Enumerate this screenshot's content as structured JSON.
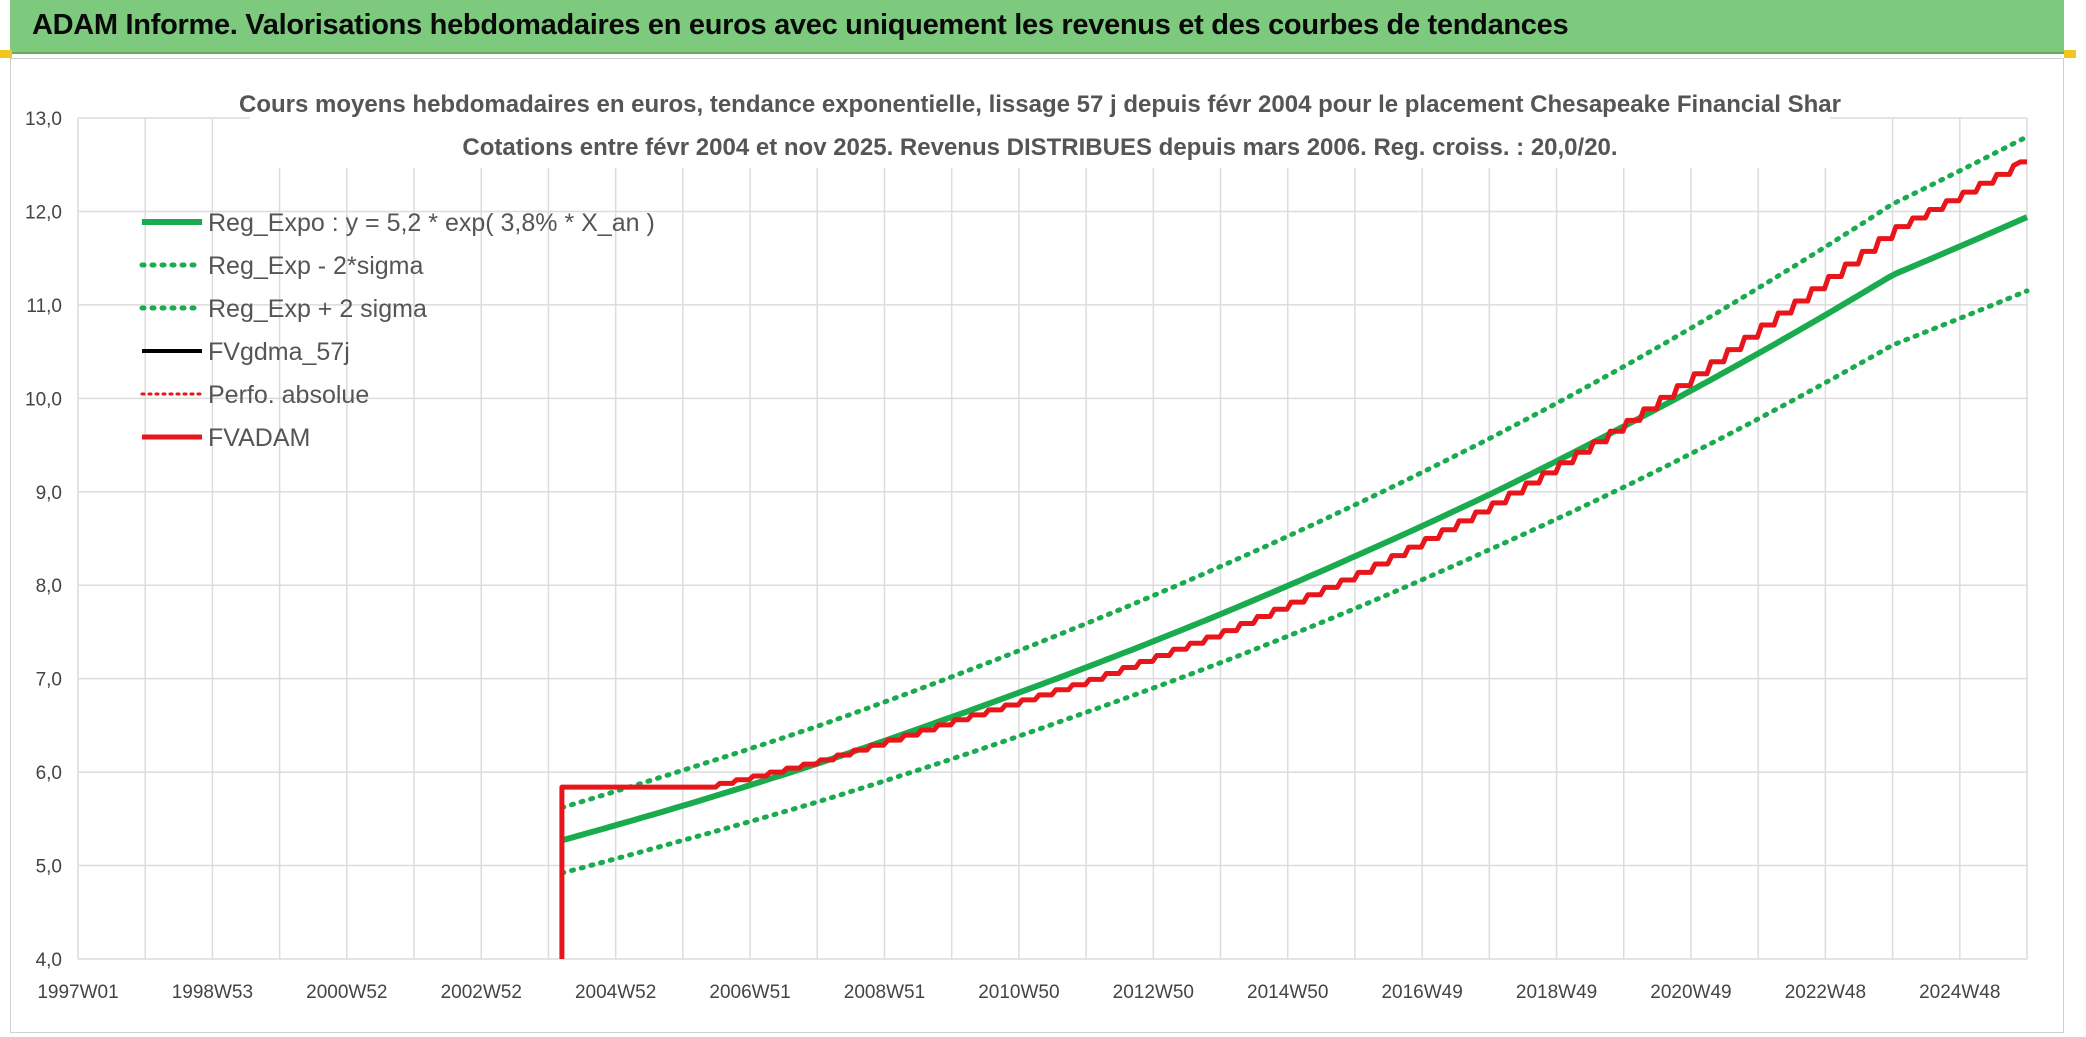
{
  "banner": {
    "title": "ADAM Informe. Valorisations hebdomadaires en euros avec uniquement les revenus et des courbes de tendances"
  },
  "colors": {
    "banner": "#7dc97e",
    "green": "#1aab4f",
    "red": "#e8161b",
    "black": "#000000",
    "grid": "#dcdcdc"
  },
  "chart_data": {
    "type": "line",
    "title_line1": "Cours moyens hebdomadaires en euros, tendance exponentielle, lissage 57 j depuis févr 2004 pour le placement Chesapeake Financial Shar",
    "title_line2": "Cotations entre févr 2004 et nov 2025. Revenus DISTRIBUES depuis mars 2006. Reg. croiss. : 20,0/20.",
    "xlabel": "",
    "ylabel": "",
    "ylim": [
      4.0,
      13.0
    ],
    "xlim": [
      1997.0,
      2026.0
    ],
    "grid": true,
    "legend_position": "top-left",
    "y_ticks": [
      "4,0",
      "5,0",
      "6,0",
      "7,0",
      "8,0",
      "9,0",
      "10,0",
      "11,0",
      "12,0",
      "13,0"
    ],
    "x_ticks": [
      {
        "label": "1997W01",
        "x": 1997.0
      },
      {
        "label": "1998W53",
        "x": 1999.0
      },
      {
        "label": "2000W52",
        "x": 2001.0
      },
      {
        "label": "2002W52",
        "x": 2003.0
      },
      {
        "label": "2004W52",
        "x": 2005.0
      },
      {
        "label": "2006W51",
        "x": 2007.0
      },
      {
        "label": "2008W51",
        "x": 2009.0
      },
      {
        "label": "2010W50",
        "x": 2011.0
      },
      {
        "label": "2012W50",
        "x": 2013.0
      },
      {
        "label": "2014W50",
        "x": 2015.0
      },
      {
        "label": "2016W49",
        "x": 2017.0
      },
      {
        "label": "2018W49",
        "x": 2019.0
      },
      {
        "label": "2020W49",
        "x": 2021.0
      },
      {
        "label": "2022W48",
        "x": 2023.0
      },
      {
        "label": "2024W48",
        "x": 2025.0
      }
    ],
    "series": [
      {
        "name": "Reg_Expo : y = 5,2 * exp( 3,8% *  X_an )",
        "style": "solid",
        "color": "#1aab4f",
        "x": [
          2004.2,
          2006.0,
          2008.0,
          2010.0,
          2012.0,
          2014.0,
          2016.0,
          2018.0,
          2020.0,
          2022.0,
          2024.0,
          2026.0
        ],
        "y": [
          5.27,
          5.64,
          6.09,
          6.59,
          7.12,
          7.69,
          8.31,
          8.97,
          9.7,
          10.48,
          11.32,
          11.94
        ]
      },
      {
        "name": "Reg_Exp - 2*sigma",
        "style": "dotted",
        "color": "#1aab4f",
        "x": [
          2004.2,
          2006.0,
          2008.0,
          2010.0,
          2012.0,
          2014.0,
          2016.0,
          2018.0,
          2020.0,
          2022.0,
          2024.0,
          2026.0
        ],
        "y": [
          4.92,
          5.27,
          5.68,
          6.14,
          6.64,
          7.17,
          7.75,
          8.38,
          9.05,
          9.78,
          10.57,
          11.15
        ]
      },
      {
        "name": "Reg_Exp + 2 sigma",
        "style": "dotted",
        "color": "#1aab4f",
        "x": [
          2004.2,
          2006.0,
          2008.0,
          2010.0,
          2012.0,
          2014.0,
          2016.0,
          2018.0,
          2020.0,
          2022.0,
          2024.0,
          2026.0
        ],
        "y": [
          5.62,
          6.02,
          6.49,
          7.02,
          7.59,
          8.2,
          8.86,
          9.57,
          10.34,
          11.18,
          12.08,
          12.8
        ]
      },
      {
        "name": "FVgdma_57j",
        "style": "solid",
        "color": "#000000",
        "x": [
          2004.2,
          2006.3,
          2007.0,
          2008.0,
          2010.0,
          2012.0,
          2014.0,
          2016.0,
          2018.0,
          2020.0,
          2022.0,
          2024.0,
          2025.9
        ],
        "y": [
          5.84,
          5.84,
          5.95,
          6.12,
          6.55,
          6.98,
          7.5,
          8.12,
          8.86,
          9.74,
          10.76,
          11.82,
          12.53
        ]
      },
      {
        "name": "Perfo. absolue",
        "style": "dotted",
        "color": "#e8161b",
        "x": [
          2004.2,
          2006.3,
          2007.0,
          2008.0,
          2010.0,
          2012.0,
          2014.0,
          2016.0,
          2018.0,
          2020.0,
          2022.0,
          2024.0,
          2025.9
        ],
        "y": [
          5.84,
          5.84,
          5.95,
          6.12,
          6.55,
          6.98,
          7.5,
          8.12,
          8.86,
          9.74,
          10.76,
          11.82,
          12.53
        ]
      },
      {
        "name": "FVADAM",
        "style": "solid",
        "color": "#e8161b",
        "x": [
          2004.2,
          2004.2,
          2006.3,
          2007.0,
          2008.0,
          2010.0,
          2012.0,
          2014.0,
          2016.0,
          2018.0,
          2020.0,
          2022.0,
          2024.0,
          2025.9,
          2026.0
        ],
        "y": [
          4.0,
          5.84,
          5.84,
          5.95,
          6.12,
          6.55,
          6.98,
          7.5,
          8.12,
          8.86,
          9.74,
          10.76,
          11.82,
          12.53,
          12.53
        ]
      }
    ]
  }
}
